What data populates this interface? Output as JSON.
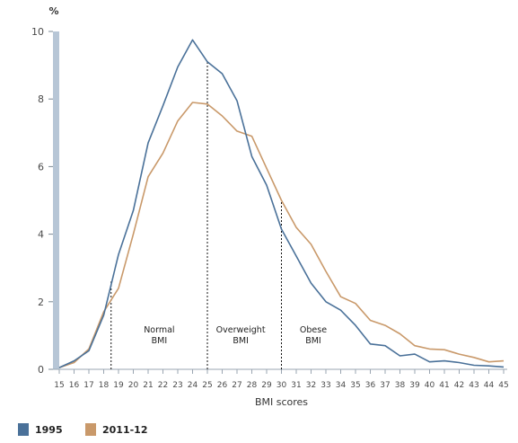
{
  "chart_data": {
    "type": "line",
    "title": "",
    "xlabel": "BMI scores",
    "ylabel": "%",
    "x": [
      15,
      16,
      17,
      18,
      19,
      20,
      21,
      22,
      23,
      24,
      25,
      26,
      27,
      28,
      29,
      30,
      31,
      32,
      33,
      34,
      35,
      36,
      37,
      38,
      39,
      40,
      41,
      42,
      43,
      44,
      45
    ],
    "xlim": [
      15,
      45
    ],
    "ylim": [
      0,
      10
    ],
    "yticks": [
      "0",
      "2",
      "4",
      "6",
      "8",
      "10"
    ],
    "series": [
      {
        "name": "1995",
        "color": "#4a7199",
        "values": [
          0.05,
          0.25,
          0.55,
          1.6,
          3.4,
          4.7,
          6.7,
          7.8,
          8.95,
          9.75,
          9.1,
          8.75,
          7.95,
          6.3,
          5.45,
          4.15,
          3.35,
          2.55,
          2.0,
          1.75,
          1.3,
          0.75,
          0.7,
          0.4,
          0.45,
          0.22,
          0.25,
          0.2,
          0.12,
          0.1,
          0.07
        ]
      },
      {
        "name": "2011-12",
        "color": "#c9996a",
        "values": [
          0.05,
          0.2,
          0.6,
          1.7,
          2.4,
          4.0,
          5.7,
          6.4,
          7.35,
          7.9,
          7.85,
          7.5,
          7.05,
          6.9,
          5.95,
          5.0,
          4.2,
          3.7,
          2.9,
          2.15,
          1.95,
          1.45,
          1.3,
          1.05,
          0.7,
          0.6,
          0.58,
          0.45,
          0.35,
          0.22,
          0.25
        ]
      }
    ],
    "reference_lines": [
      {
        "x": 18.5,
        "top": 2.6
      },
      {
        "x": 25,
        "top": 9.1
      },
      {
        "x": 30,
        "top": 5.0
      }
    ],
    "annotations": [
      {
        "id": "normal",
        "lines": [
          "Normal",
          "BMI"
        ],
        "x": 21.75
      },
      {
        "id": "overweight",
        "lines": [
          "Overweight",
          "BMI"
        ],
        "x": 27.25
      },
      {
        "id": "obese",
        "lines": [
          "Obese",
          "BMI"
        ],
        "x": 32.15
      }
    ],
    "legend_position": "bottom-left",
    "grid": false
  }
}
